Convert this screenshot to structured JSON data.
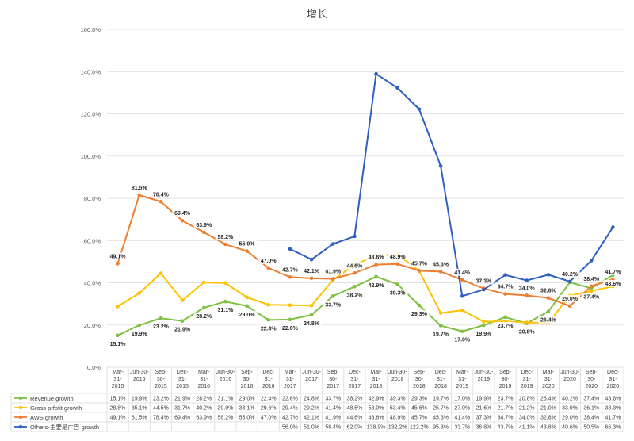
{
  "chart_data": {
    "type": "line",
    "title": "增长",
    "xlabel": "",
    "ylabel": "",
    "ylim": [
      0,
      160
    ],
    "yticks": [
      "0.0%",
      "20.0%",
      "40.0%",
      "60.0%",
      "80.0%",
      "100.0%",
      "120.0%",
      "140.0%",
      "160.0%"
    ],
    "grid": true,
    "legend_placement": "data-table-left",
    "categories": [
      [
        "Mar-",
        "31-",
        "2015"
      ],
      [
        "Jun-30-",
        "2015"
      ],
      [
        "Sep-",
        "30-",
        "2015"
      ],
      [
        "Dec-",
        "31-",
        "2015"
      ],
      [
        "Mar-",
        "31-",
        "2016"
      ],
      [
        "Jun-30-",
        "2016"
      ],
      [
        "Sep-",
        "30-",
        "2016"
      ],
      [
        "Dec-",
        "31-",
        "2016"
      ],
      [
        "Mar-",
        "31-",
        "2017"
      ],
      [
        "Jun-30-",
        "2017"
      ],
      [
        "Sep-",
        "30-",
        "2017"
      ],
      [
        "Dec-",
        "31-",
        "2017"
      ],
      [
        "Mar-",
        "31-",
        "2018"
      ],
      [
        "Jun-30-",
        "2018"
      ],
      [
        "Sep-",
        "30-",
        "2018"
      ],
      [
        "Dec-",
        "31-",
        "2018"
      ],
      [
        "Mar-",
        "31-",
        "2019"
      ],
      [
        "Jun-30-",
        "2019"
      ],
      [
        "Sep-",
        "30-",
        "2019"
      ],
      [
        "Dec-",
        "31-",
        "2019"
      ],
      [
        "Mar-",
        "31-",
        "2020"
      ],
      [
        "Jun-30-",
        "2020"
      ],
      [
        "Sep-",
        "30-",
        "2020"
      ],
      [
        "Dec-",
        "31-",
        "2020"
      ]
    ],
    "series": [
      {
        "name": "Revenue growth",
        "color": "#7dc142",
        "values": [
          15.1,
          19.9,
          23.2,
          21.9,
          28.2,
          31.1,
          29.0,
          22.4,
          22.6,
          24.8,
          33.7,
          38.2,
          42.9,
          39.3,
          29.3,
          19.7,
          17.0,
          19.9,
          23.7,
          20.8,
          26.4,
          40.2,
          37.4,
          43.6
        ],
        "labels": [
          "15.1%",
          "19.9%",
          "23.2%",
          "21.9%",
          "28.2%",
          "31.1%",
          "29.0%",
          "22.4%",
          "22.6%",
          "24.8%",
          "33.7%",
          "38.2%",
          "42.9%",
          "39.3%",
          "29.3%",
          "19.7%",
          "17.0%",
          "19.9%",
          "23.7%",
          "20.8%",
          "26.4%",
          "40.2%",
          "37.4%",
          "43.6%"
        ]
      },
      {
        "name": "Gross prfofit growth",
        "color": "#ffc000",
        "values": [
          28.8,
          35.1,
          44.5,
          31.7,
          40.2,
          39.9,
          33.1,
          29.6,
          29.4,
          29.2,
          41.4,
          48.5,
          53.0,
          53.4,
          45.6,
          25.7,
          27.0,
          21.6,
          21.7,
          21.2,
          21.0,
          33.9,
          36.1,
          38.3
        ],
        "labels": [
          "28.8%",
          "35.1%",
          "44.5%",
          "31.7%",
          "40.2%",
          "39.9%",
          "33.1%",
          "29.6%",
          "29.4%",
          "29.2%",
          "41.4%",
          "48.5%",
          "53.0%",
          "53.4%",
          "45.6%",
          "25.7%",
          "27.0%",
          "21.6%",
          "21.7%",
          "21.2%",
          "21.0%",
          "33.9%",
          "36.1%",
          "38.3%"
        ]
      },
      {
        "name": "AWS growth",
        "color": "#ed7d31",
        "values": [
          49.1,
          81.5,
          78.4,
          69.4,
          63.9,
          58.2,
          55.0,
          47.0,
          42.7,
          42.1,
          41.9,
          44.6,
          48.6,
          48.9,
          45.7,
          45.3,
          41.4,
          37.3,
          34.7,
          34.0,
          32.8,
          29.0,
          38.4,
          41.7
        ],
        "labels": [
          "49.1%",
          "81.5%",
          "78.4%",
          "69.4%",
          "63.9%",
          "58.2%",
          "55.0%",
          "47.0%",
          "42.7%",
          "42.1%",
          "41.9%",
          "44.6%",
          "48.6%",
          "48.9%",
          "45.7%",
          "45.3%",
          "41.4%",
          "37.3%",
          "34.7%",
          "34.0%",
          "32.8%",
          "29.0%",
          "38.4%",
          "41.7%"
        ]
      },
      {
        "name": "Others-主要是广告 growth",
        "color": "#2e5fc1",
        "values": [
          null,
          null,
          null,
          null,
          null,
          null,
          null,
          null,
          56.0,
          51.0,
          58.4,
          62.0,
          138.9,
          132.2,
          122.2,
          95.3,
          33.7,
          36.8,
          43.7,
          41.1,
          43.8,
          40.6,
          50.5,
          66.3
        ],
        "labels": [
          "",
          "",
          "",
          "",
          "",
          "",
          "",
          "",
          "56.0%",
          "51.0%",
          "58.4%",
          "62.0%",
          "138.9%",
          "132.2%",
          "122.2%",
          "95.3%",
          "33.7%",
          "36.8%",
          "43.7%",
          "41.1%",
          "43.8%",
          "40.6%",
          "50.5%",
          "66.3%"
        ]
      }
    ],
    "data_labels": {
      "Revenue growth": [
        "15.1%",
        "19.9%",
        "23.2%",
        "21.9%",
        "28.2%",
        "31.1%",
        "29.0%",
        "22.4%",
        "22.6%",
        "24.8%",
        "33.7%",
        "38.2%",
        "42.9%",
        "39.3%",
        "29.3%",
        "19.7%",
        "17.0%",
        "19.9%",
        "23.7%",
        "20.8%",
        "26.4%",
        "",
        "37.4%",
        "43.6%"
      ],
      "AWS growth": [
        "49.1%",
        "81.5%",
        "78.4%",
        "69.4%",
        "63.9%",
        "58.2%",
        "55.0%",
        "47.0%",
        "42.7%",
        "42.1%",
        "41.9%",
        "44.6%",
        "48.6%",
        "48.9%",
        "45.7%",
        "45.3%",
        "41.4%",
        "37.3%",
        "34.7%",
        "34.0%",
        "32.8%",
        "29.0%",
        "38.4%",
        "41.7%"
      ],
      "Others-主要是广告 growth": [
        "",
        "",
        "",
        "",
        "",
        "",
        "",
        "",
        "",
        "",
        "",
        "",
        "",
        "",
        "",
        "",
        "",
        "",
        "",
        "",
        "",
        "40.2%",
        "",
        ""
      ]
    }
  }
}
